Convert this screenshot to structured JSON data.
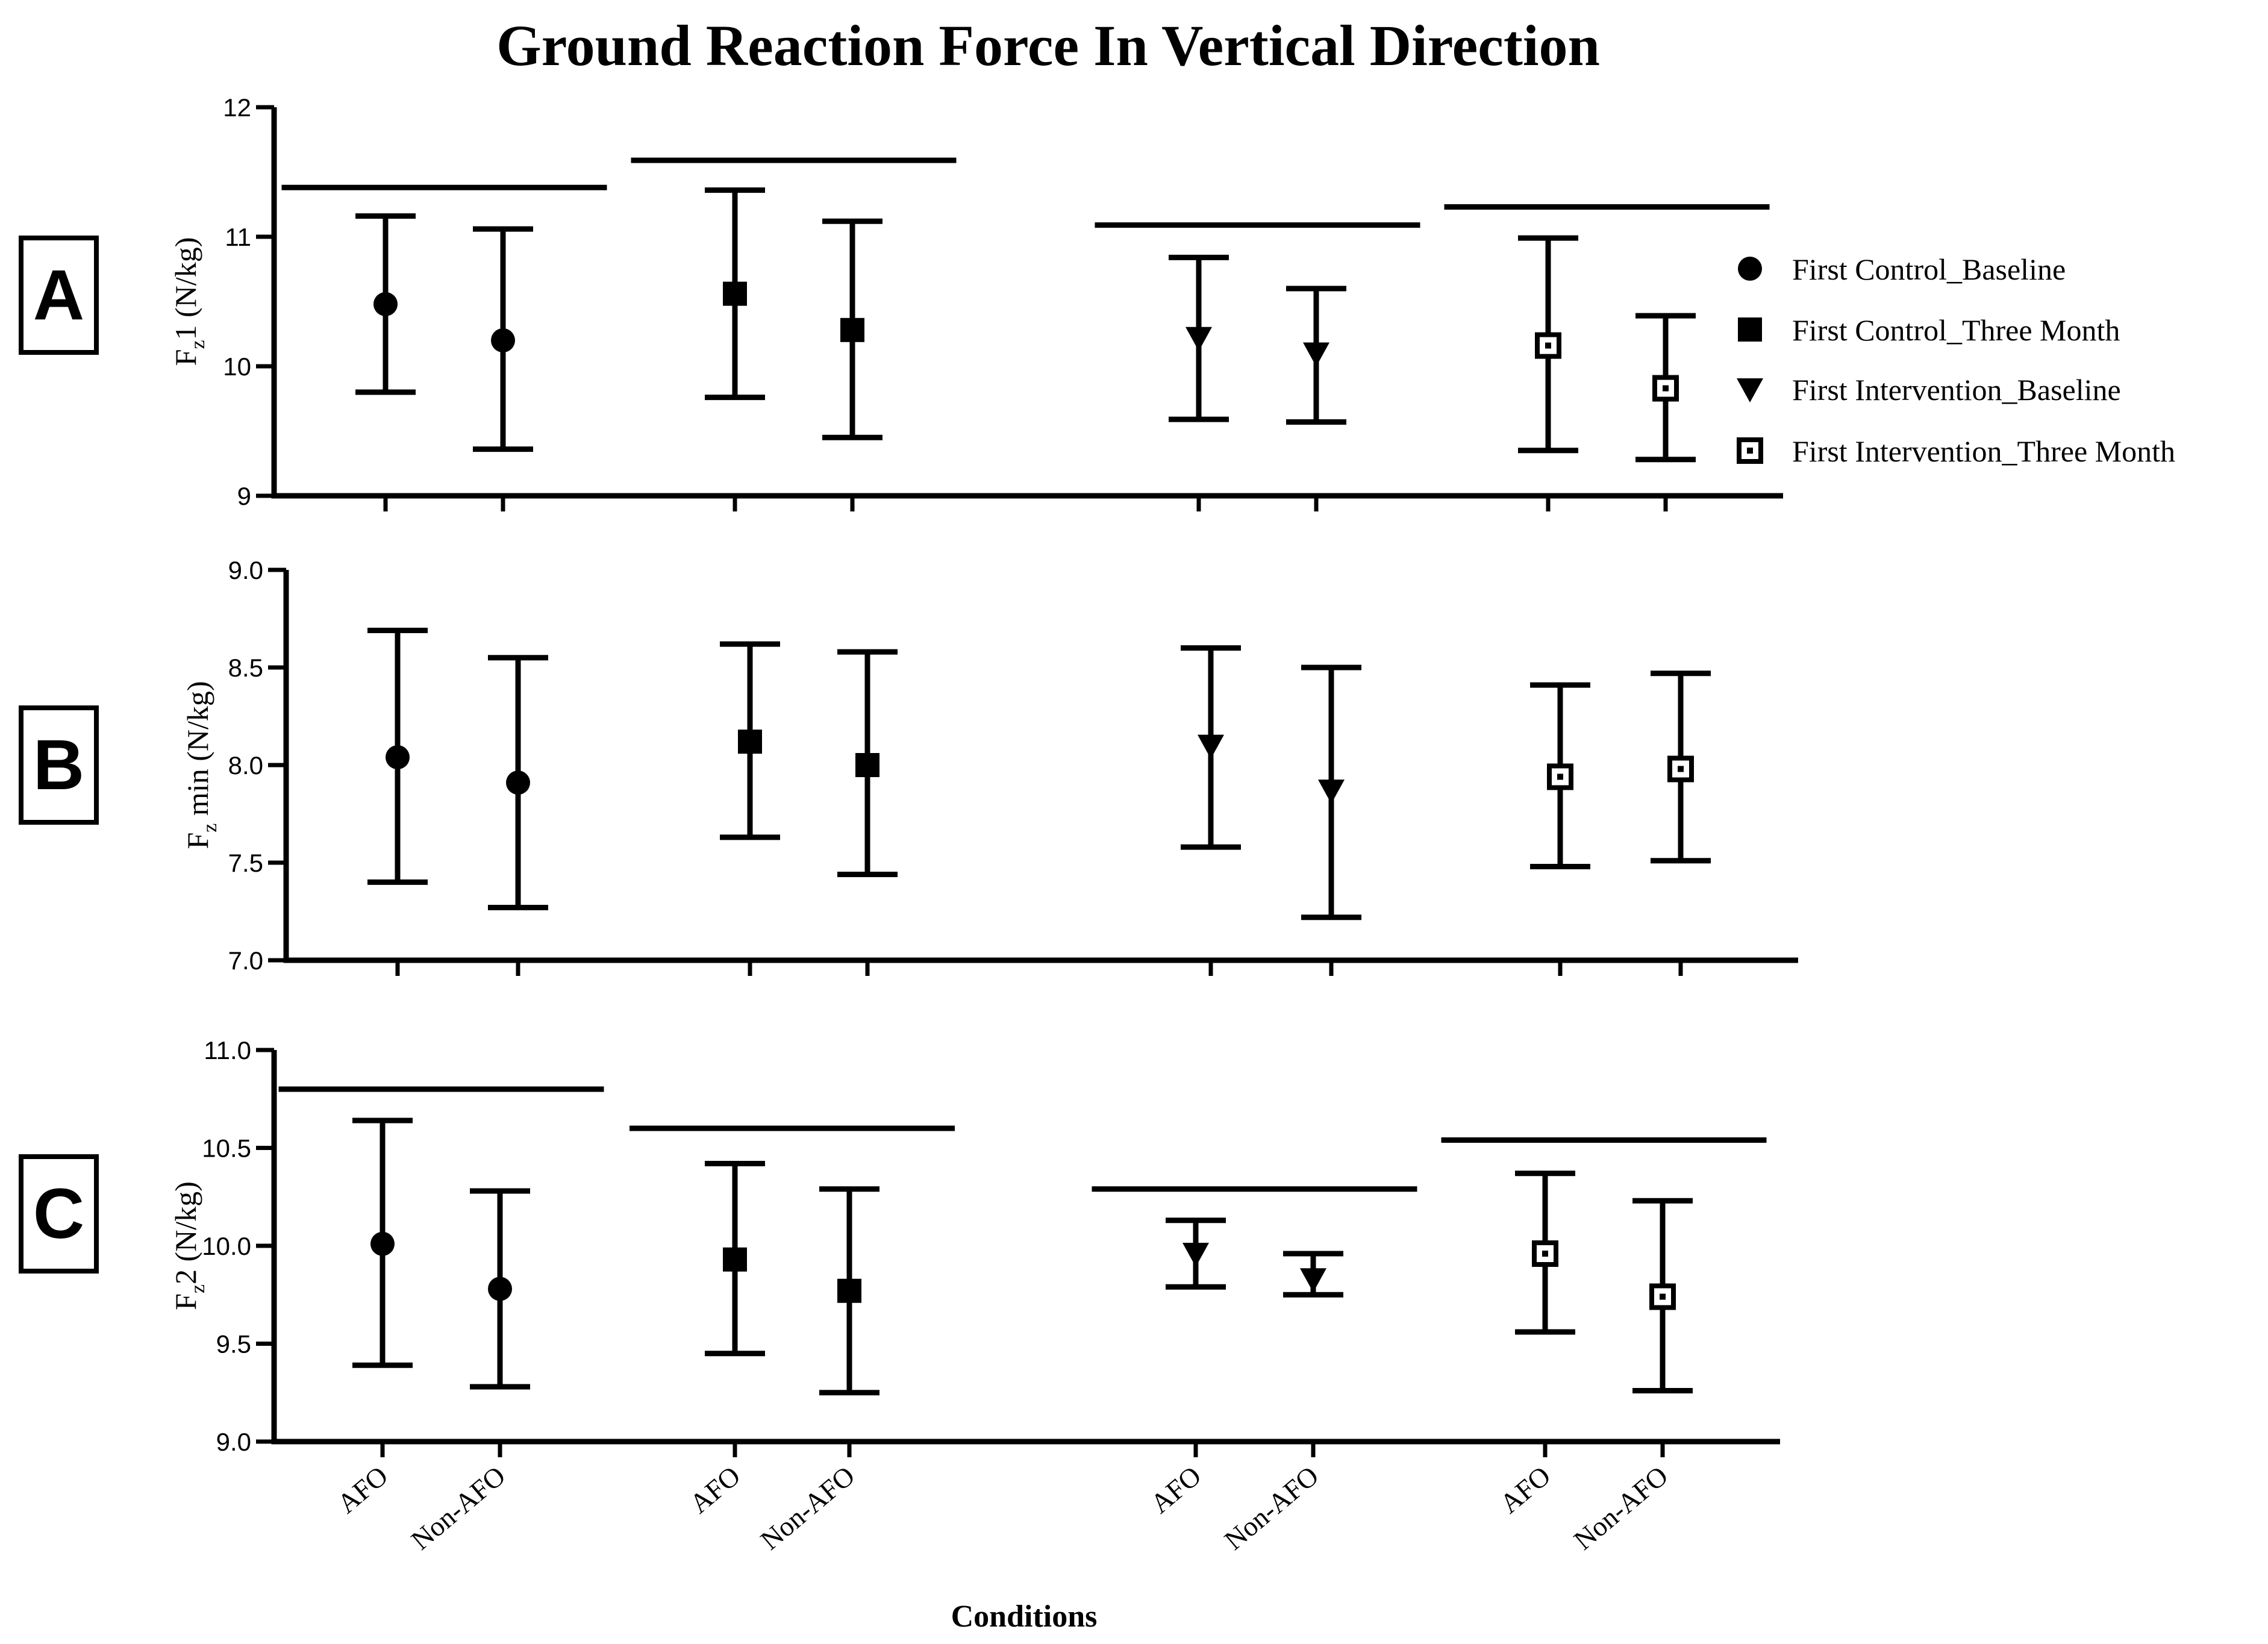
{
  "title": "Ground Reaction Force In Vertical Direction",
  "xlabel": "Conditions",
  "legend": [
    {
      "label": "First Control_Baseline",
      "marker": "circle"
    },
    {
      "label": "First Control_Three Month",
      "marker": "square"
    },
    {
      "label": "First Intervention_Baseline",
      "marker": "triangle-down"
    },
    {
      "label": "First Intervention_Three Month",
      "marker": "open-square"
    }
  ],
  "chart_data": [
    {
      "type": "scatter",
      "panel_label": "A",
      "ylabel_main": "F",
      "ylabel_sub": "z",
      "ylabel_rest": "1 (N/kg)",
      "ylim": [
        9,
        12
      ],
      "yticks": [
        "9",
        "10",
        "11",
        "12"
      ],
      "ytick_values": [
        9,
        10,
        11,
        12
      ],
      "categories": [
        "AFO",
        "Non-AFO"
      ],
      "series": [
        {
          "name": "First Control_Baseline",
          "marker": "circle",
          "mean": [
            10.48,
            10.2
          ],
          "lower": [
            9.8,
            9.36
          ],
          "upper": [
            11.16,
            11.06
          ],
          "significance_bar": 11.38
        },
        {
          "name": "First Control_Three Month",
          "marker": "square",
          "mean": [
            10.56,
            10.28
          ],
          "lower": [
            9.76,
            9.45
          ],
          "upper": [
            11.36,
            11.12
          ],
          "significance_bar": 11.59
        },
        {
          "name": "First Intervention_Baseline",
          "marker": "triangle-down",
          "mean": [
            10.22,
            10.1
          ],
          "lower": [
            9.59,
            9.57
          ],
          "upper": [
            10.84,
            10.6
          ],
          "significance_bar": 11.09
        },
        {
          "name": "First Intervention_Three Month",
          "marker": "open-square",
          "mean": [
            10.16,
            9.83
          ],
          "lower": [
            9.35,
            9.28
          ],
          "upper": [
            10.99,
            10.39
          ],
          "significance_bar": 11.23
        }
      ]
    },
    {
      "type": "scatter",
      "panel_label": "B",
      "ylabel_main": "F",
      "ylabel_sub": "z",
      "ylabel_rest": " min (N/kg)",
      "ylim": [
        7.0,
        9.0
      ],
      "yticks": [
        "7.0",
        "7.5",
        "8.0",
        "8.5",
        "9.0"
      ],
      "ytick_values": [
        7.0,
        7.5,
        8.0,
        8.5,
        9.0
      ],
      "categories": [
        "AFO",
        "Non-AFO"
      ],
      "series": [
        {
          "name": "First Control_Baseline",
          "marker": "circle",
          "mean": [
            8.04,
            7.91
          ],
          "lower": [
            7.4,
            7.27
          ],
          "upper": [
            8.69,
            8.55
          ]
        },
        {
          "name": "First Control_Three Month",
          "marker": "square",
          "mean": [
            8.12,
            8.0
          ],
          "lower": [
            7.63,
            7.44
          ],
          "upper": [
            8.62,
            8.58
          ]
        },
        {
          "name": "First Intervention_Baseline",
          "marker": "triangle-down",
          "mean": [
            8.1,
            7.87
          ],
          "lower": [
            7.58,
            7.22
          ],
          "upper": [
            8.6,
            8.5
          ]
        },
        {
          "name": "First Intervention_Three Month",
          "marker": "open-square",
          "mean": [
            7.94,
            7.98
          ],
          "lower": [
            7.48,
            7.51
          ],
          "upper": [
            8.41,
            8.47
          ]
        }
      ]
    },
    {
      "type": "scatter",
      "panel_label": "C",
      "ylabel_main": "F",
      "ylabel_sub": "z",
      "ylabel_rest": "2 (N/kg)",
      "ylim": [
        9.0,
        11.0
      ],
      "yticks": [
        "9.0",
        "9.5",
        "10.0",
        "10.5",
        "11.0"
      ],
      "ytick_values": [
        9.0,
        9.5,
        10.0,
        10.5,
        11.0
      ],
      "categories": [
        "AFO",
        "Non-AFO"
      ],
      "series": [
        {
          "name": "First Control_Baseline",
          "marker": "circle",
          "mean": [
            10.01,
            9.78
          ],
          "lower": [
            9.39,
            9.28
          ],
          "upper": [
            10.64,
            10.28
          ],
          "significance_bar": 10.8
        },
        {
          "name": "First Control_Three Month",
          "marker": "square",
          "mean": [
            9.93,
            9.77
          ],
          "lower": [
            9.45,
            9.25
          ],
          "upper": [
            10.42,
            10.29
          ],
          "significance_bar": 10.6
        },
        {
          "name": "First Intervention_Baseline",
          "marker": "triangle-down",
          "mean": [
            9.96,
            9.83
          ],
          "lower": [
            9.79,
            9.75
          ],
          "upper": [
            10.13,
            9.96
          ],
          "significance_bar": 10.29
        },
        {
          "name": "First Intervention_Three Month",
          "marker": "open-square",
          "mean": [
            9.96,
            9.74
          ],
          "lower": [
            9.56,
            9.26
          ],
          "upper": [
            10.37,
            10.23
          ],
          "significance_bar": 10.54
        }
      ]
    }
  ]
}
